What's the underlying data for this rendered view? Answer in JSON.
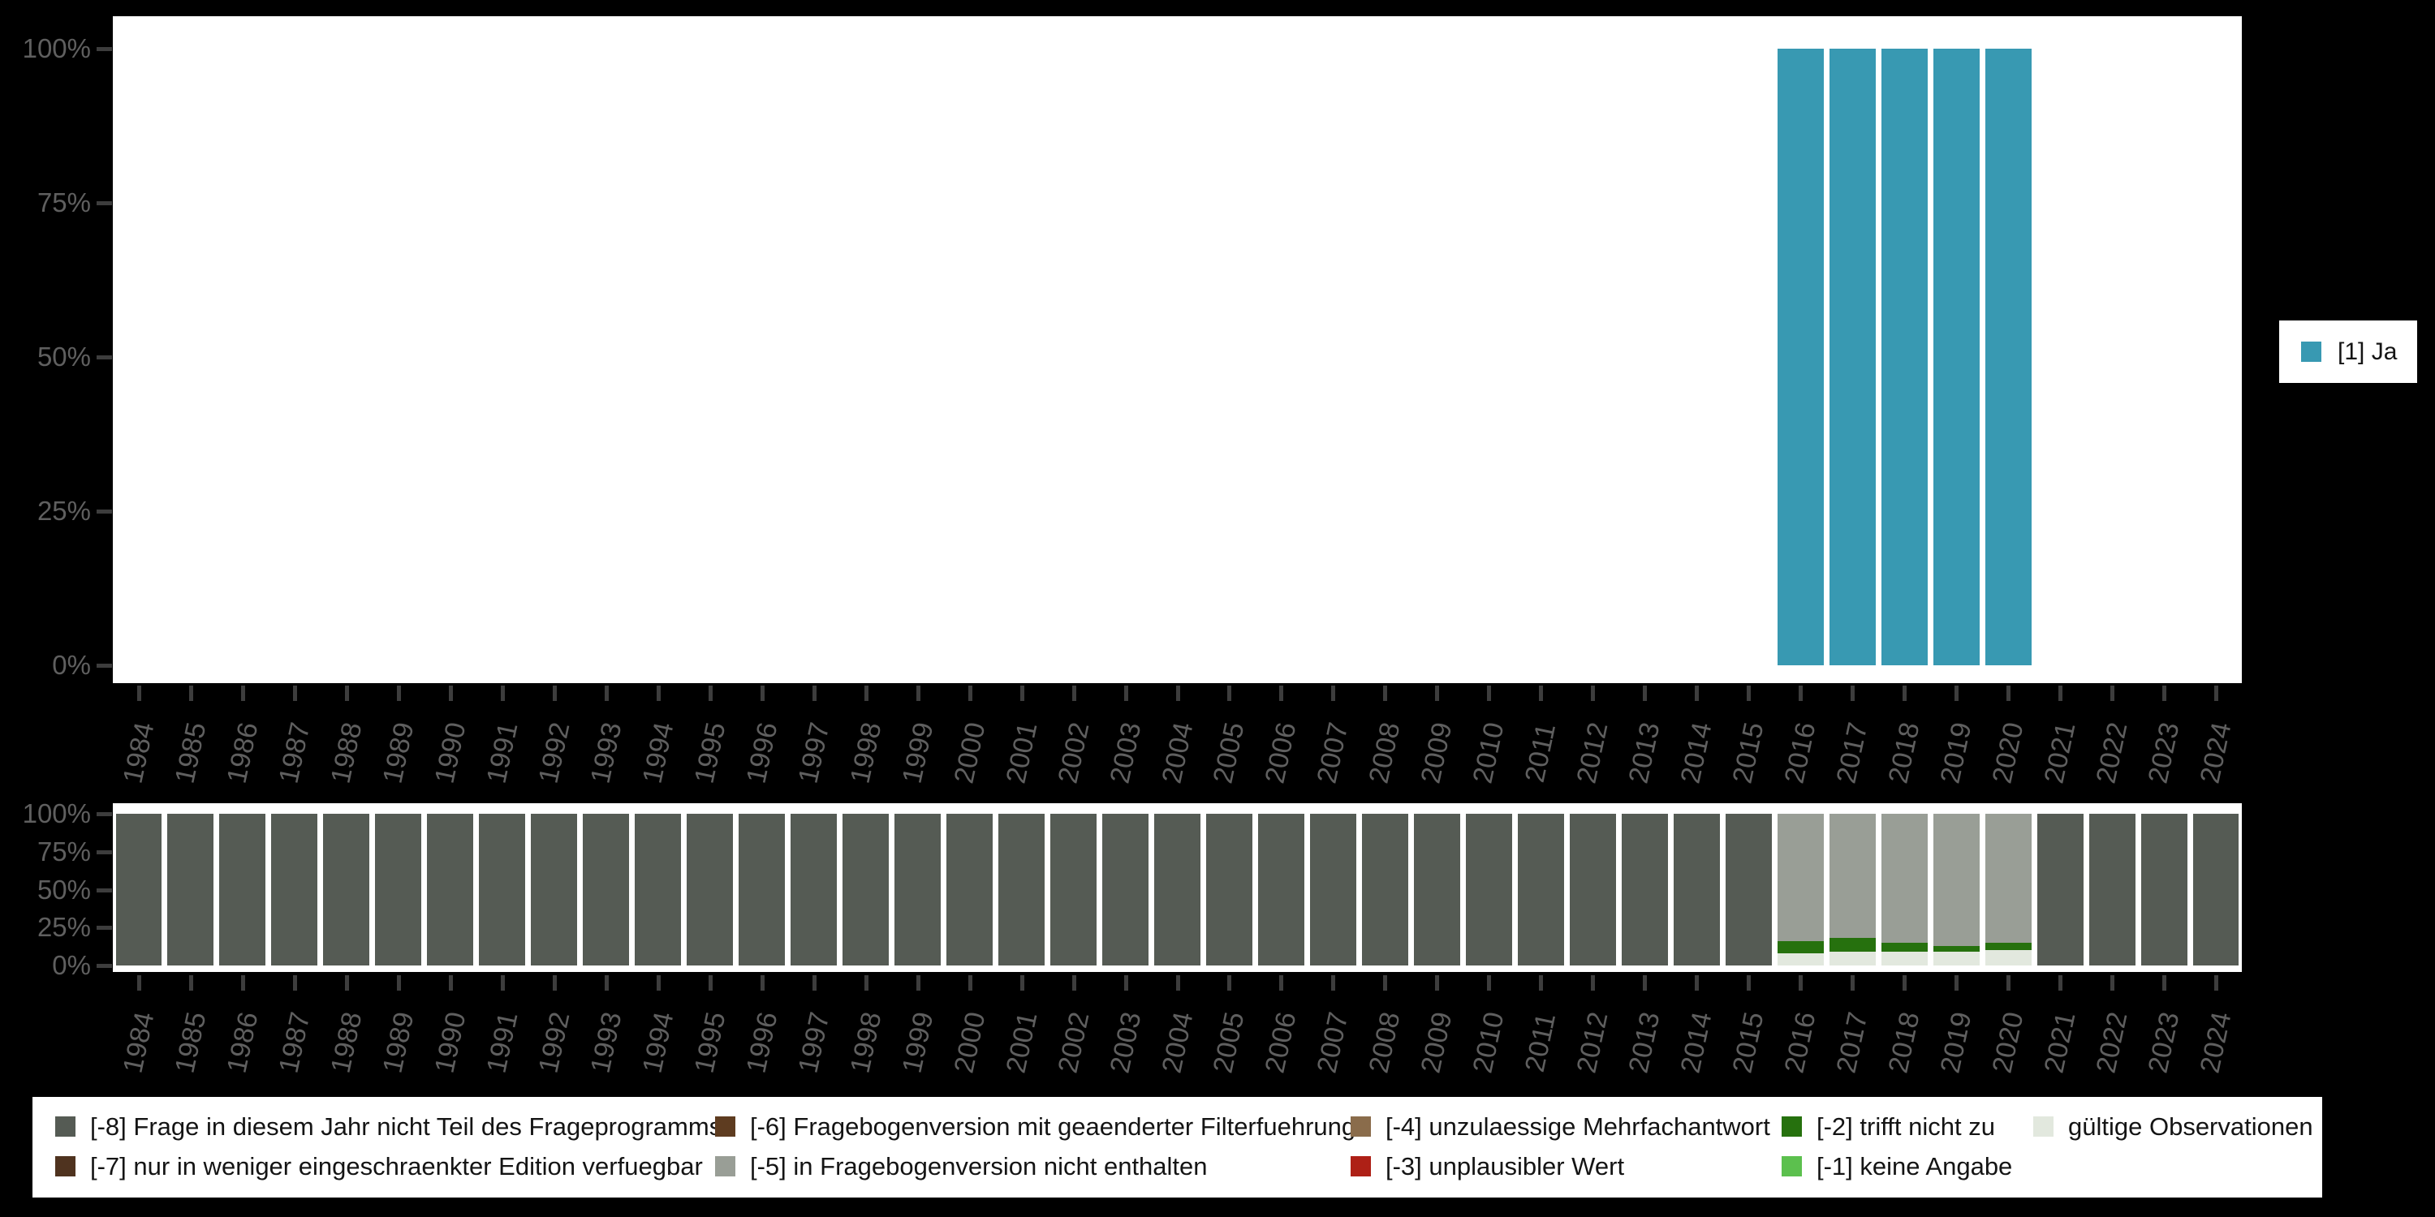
{
  "colors": {
    "page_bg": "#000000",
    "plot_bg": "#ffffff",
    "axis_text": "#5f5f5f",
    "axis_tick": "#3d3d3d",
    "legend_text": "#141414",
    "legend_bg": "#ffffff"
  },
  "category_colors": {
    "-8": "#555b54",
    "-7": "#4f331f",
    "-6": "#5e3c20",
    "-5": "#999e96",
    "-4": "#8a6c4b",
    "-3": "#ae2016",
    "-2": "#26710e",
    "-1": "#5cc04e",
    "valid": "#e2e8de",
    "ja": "#3899b2"
  },
  "right_legend": {
    "label": "[1] Ja",
    "color_key": "ja"
  },
  "bottom_legend": {
    "items": [
      {
        "key": "-8",
        "label": "[-8] Frage in diesem Jahr nicht Teil des Frageprogramms"
      },
      {
        "key": "-7",
        "label": "[-7] nur in weniger eingeschraenkter Edition verfuegbar"
      },
      {
        "key": "-6",
        "label": "[-6] Fragebogenversion mit geaenderter Filterfuehrung"
      },
      {
        "key": "-5",
        "label": "[-5] in Fragebogenversion nicht enthalten"
      },
      {
        "key": "-4",
        "label": "[-4] unzulaessige Mehrfachantwort"
      },
      {
        "key": "-3",
        "label": "[-3] unplausibler Wert"
      },
      {
        "key": "-2",
        "label": "[-2] trifft nicht zu"
      },
      {
        "key": "-1",
        "label": "[-1] keine Angabe"
      },
      {
        "key": "valid",
        "label": "gültige Observationen"
      }
    ]
  },
  "chart_data": [
    {
      "type": "bar",
      "stacked": true,
      "title": "",
      "xlabel": "",
      "ylabel": "",
      "legend_position": "right",
      "grid": false,
      "ylim": [
        0,
        100
      ],
      "yticks": [
        "100%",
        "75%",
        "50%",
        "25%",
        "0%"
      ],
      "x": [
        1984,
        1985,
        1986,
        1987,
        1988,
        1989,
        1990,
        1991,
        1992,
        1993,
        1994,
        1995,
        1996,
        1997,
        1998,
        1999,
        2000,
        2001,
        2002,
        2003,
        2004,
        2005,
        2006,
        2007,
        2008,
        2009,
        2010,
        2011,
        2012,
        2013,
        2014,
        2015,
        2016,
        2017,
        2018,
        2019,
        2020,
        2021,
        2022,
        2023,
        2024
      ],
      "series": [
        {
          "name": "[1] Ja",
          "color_key": "ja",
          "values": [
            0,
            0,
            0,
            0,
            0,
            0,
            0,
            0,
            0,
            0,
            0,
            0,
            0,
            0,
            0,
            0,
            0,
            0,
            0,
            0,
            0,
            0,
            0,
            0,
            0,
            0,
            0,
            0,
            0,
            0,
            0,
            0,
            100,
            100,
            100,
            100,
            100,
            0,
            0,
            0,
            0
          ]
        }
      ]
    },
    {
      "type": "bar",
      "stacked": true,
      "title": "",
      "xlabel": "",
      "ylabel": "",
      "legend_position": "bottom",
      "grid": false,
      "ylim": [
        0,
        100
      ],
      "yticks": [
        "100%",
        "75%",
        "50%",
        "25%",
        "0%"
      ],
      "x": [
        1984,
        1985,
        1986,
        1987,
        1988,
        1989,
        1990,
        1991,
        1992,
        1993,
        1994,
        1995,
        1996,
        1997,
        1998,
        1999,
        2000,
        2001,
        2002,
        2003,
        2004,
        2005,
        2006,
        2007,
        2008,
        2009,
        2010,
        2011,
        2012,
        2013,
        2014,
        2015,
        2016,
        2017,
        2018,
        2019,
        2020,
        2021,
        2022,
        2023,
        2024
      ],
      "stack_order_note": "series listed bottom-to-top",
      "series": [
        {
          "name": "gültige Observationen",
          "color_key": "valid",
          "values": [
            0,
            0,
            0,
            0,
            0,
            0,
            0,
            0,
            0,
            0,
            0,
            0,
            0,
            0,
            0,
            0,
            0,
            0,
            0,
            0,
            0,
            0,
            0,
            0,
            0,
            0,
            0,
            0,
            0,
            0,
            0,
            0,
            8,
            9,
            9,
            9,
            10,
            0,
            0,
            0,
            0
          ]
        },
        {
          "name": "[-2] trifft nicht zu",
          "color_key": "-2",
          "values": [
            0,
            0,
            0,
            0,
            0,
            0,
            0,
            0,
            0,
            0,
            0,
            0,
            0,
            0,
            0,
            0,
            0,
            0,
            0,
            0,
            0,
            0,
            0,
            0,
            0,
            0,
            0,
            0,
            0,
            0,
            0,
            0,
            8,
            9,
            6,
            4,
            5,
            0,
            0,
            0,
            0
          ]
        },
        {
          "name": "[-5] in Fragebogenversion nicht enthalten",
          "color_key": "-5",
          "values": [
            0,
            0,
            0,
            0,
            0,
            0,
            0,
            0,
            0,
            0,
            0,
            0,
            0,
            0,
            0,
            0,
            0,
            0,
            0,
            0,
            0,
            0,
            0,
            0,
            0,
            0,
            0,
            0,
            0,
            0,
            0,
            0,
            84,
            82,
            85,
            87,
            85,
            0,
            0,
            0,
            0
          ]
        },
        {
          "name": "[-8] Frage in diesem Jahr nicht Teil des Frageprogramms",
          "color_key": "-8",
          "values": [
            100,
            100,
            100,
            100,
            100,
            100,
            100,
            100,
            100,
            100,
            100,
            100,
            100,
            100,
            100,
            100,
            100,
            100,
            100,
            100,
            100,
            100,
            100,
            100,
            100,
            100,
            100,
            100,
            100,
            100,
            100,
            100,
            0,
            0,
            0,
            0,
            0,
            100,
            100,
            100,
            100
          ]
        }
      ]
    }
  ]
}
